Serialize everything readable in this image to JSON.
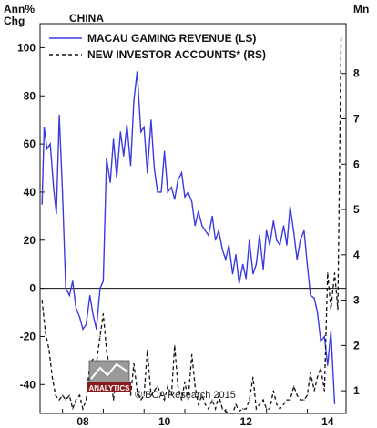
{
  "chart_data": {
    "type": "line",
    "title": "CHINA",
    "left_axis_label": [
      "Ann%",
      "Chg"
    ],
    "right_axis_label": "Mn",
    "left_ylim": [
      -52,
      110
    ],
    "right_ylim": [
      0.5,
      9.1
    ],
    "left_ticks": [
      -40,
      -20,
      0,
      20,
      40,
      60,
      80,
      100
    ],
    "right_ticks": [
      1,
      2,
      3,
      4,
      5,
      6,
      7,
      8
    ],
    "xlim": [
      2007.45,
      2014.95
    ],
    "x_ticks": [
      {
        "x": 2008.0,
        "label": "08"
      },
      {
        "x": 2010.0,
        "label": "10"
      },
      {
        "x": 2012.0,
        "label": "12"
      },
      {
        "x": 2014.0,
        "label": "14"
      }
    ],
    "zero_line": 0,
    "grid": false,
    "legend": "top-left",
    "series": [
      {
        "name": "MACAU GAMING REVENUE (LS)",
        "axis": "left",
        "color": "#3b3bdc",
        "style": "solid",
        "x": [
          2007.5,
          2007.55,
          2007.62,
          2007.7,
          2007.78,
          2007.85,
          2007.92,
          2008.0,
          2008.08,
          2008.17,
          2008.25,
          2008.33,
          2008.42,
          2008.5,
          2008.58,
          2008.67,
          2008.75,
          2008.83,
          2008.92,
          2009.0,
          2009.08,
          2009.17,
          2009.25,
          2009.33,
          2009.42,
          2009.5,
          2009.58,
          2009.67,
          2009.75,
          2009.83,
          2009.92,
          2010.0,
          2010.08,
          2010.17,
          2010.25,
          2010.33,
          2010.42,
          2010.5,
          2010.58,
          2010.67,
          2010.75,
          2010.83,
          2010.92,
          2011.0,
          2011.08,
          2011.17,
          2011.25,
          2011.33,
          2011.42,
          2011.5,
          2011.58,
          2011.67,
          2011.75,
          2011.83,
          2011.92,
          2012.0,
          2012.08,
          2012.17,
          2012.25,
          2012.33,
          2012.42,
          2012.5,
          2012.58,
          2012.67,
          2012.75,
          2012.83,
          2012.92,
          2013.0,
          2013.08,
          2013.17,
          2013.25,
          2013.33,
          2013.42,
          2013.5,
          2013.58,
          2013.67,
          2013.75,
          2013.83,
          2013.92,
          2014.0,
          2014.08,
          2014.17,
          2014.25,
          2014.33,
          2014.42,
          2014.5,
          2014.58,
          2014.67
        ],
        "values": [
          35,
          67,
          58,
          60,
          42,
          31,
          72,
          40,
          0,
          -3,
          3,
          -8,
          -12,
          -17,
          -15,
          -3,
          -11,
          -17,
          0,
          3,
          54,
          44,
          62,
          46,
          65,
          55,
          68,
          51,
          78,
          90,
          65,
          67,
          48,
          70,
          50,
          40,
          40,
          57,
          40,
          42,
          37,
          45,
          48,
          38,
          40,
          36,
          26,
          32,
          26,
          24,
          22,
          30,
          20,
          24,
          16,
          12,
          18,
          6,
          14,
          2,
          10,
          4,
          20,
          6,
          10,
          22,
          8,
          24,
          18,
          28,
          20,
          18,
          26,
          18,
          34,
          23,
          12,
          20,
          24,
          10,
          -3,
          -4,
          -10,
          -22,
          -20,
          -32,
          -18,
          -48
        ]
      },
      {
        "name": "NEW INVESTOR ACCOUNTS* (RS)",
        "axis": "right",
        "color": "#111111",
        "style": "dashed",
        "x": [
          2007.5,
          2007.58,
          2007.67,
          2007.75,
          2007.83,
          2007.92,
          2008.0,
          2008.08,
          2008.17,
          2008.25,
          2008.33,
          2008.42,
          2008.5,
          2008.58,
          2008.67,
          2008.75,
          2008.83,
          2008.92,
          2009.0,
          2009.08,
          2009.17,
          2009.25,
          2009.33,
          2009.42,
          2009.5,
          2009.58,
          2009.67,
          2009.75,
          2009.83,
          2009.92,
          2010.0,
          2010.08,
          2010.17,
          2010.25,
          2010.33,
          2010.42,
          2010.5,
          2010.58,
          2010.67,
          2010.75,
          2010.83,
          2010.92,
          2011.0,
          2011.08,
          2011.17,
          2011.25,
          2011.33,
          2011.42,
          2011.5,
          2011.58,
          2011.67,
          2011.75,
          2011.83,
          2011.92,
          2012.0,
          2012.08,
          2012.17,
          2012.25,
          2012.33,
          2012.42,
          2012.5,
          2012.58,
          2012.67,
          2012.75,
          2012.83,
          2012.92,
          2013.0,
          2013.08,
          2013.17,
          2013.25,
          2013.33,
          2013.42,
          2013.5,
          2013.58,
          2013.67,
          2013.75,
          2013.83,
          2013.92,
          2014.0,
          2014.08,
          2014.17,
          2014.25,
          2014.33,
          2014.42,
          2014.5,
          2014.58,
          2014.67,
          2014.75,
          2014.83
        ],
        "values": [
          3.0,
          2.3,
          1.9,
          1.3,
          0.9,
          0.8,
          0.9,
          0.8,
          0.9,
          0.6,
          0.8,
          0.9,
          0.6,
          0.8,
          1.6,
          1.7,
          1.6,
          2.2,
          2.7,
          1.9,
          1.4,
          0.8,
          1.4,
          1.2,
          1.4,
          1.3,
          0.9,
          1.6,
          1.0,
          0.8,
          0.9,
          1.9,
          0.9,
          1.0,
          1.1,
          0.9,
          0.8,
          1.1,
          0.9,
          2.0,
          1.1,
          0.8,
          1.2,
          0.8,
          1.8,
          1.1,
          0.7,
          0.9,
          0.7,
          0.6,
          0.8,
          0.6,
          0.9,
          0.6,
          0.55,
          0.5,
          0.5,
          0.7,
          0.55,
          0.6,
          0.6,
          0.8,
          1.3,
          0.6,
          0.7,
          0.8,
          0.6,
          0.6,
          1.0,
          0.7,
          0.6,
          0.7,
          0.8,
          0.8,
          1.1,
          0.9,
          0.8,
          0.8,
          0.9,
          1.4,
          1.0,
          1.3,
          1.5,
          1.0,
          3.6,
          2.8,
          3.6,
          2.8,
          8.8
        ]
      }
    ]
  },
  "credit": "© BCA Research 2015",
  "logo": {
    "text": "ANALYTICS",
    "color": "#8a1c1c"
  }
}
